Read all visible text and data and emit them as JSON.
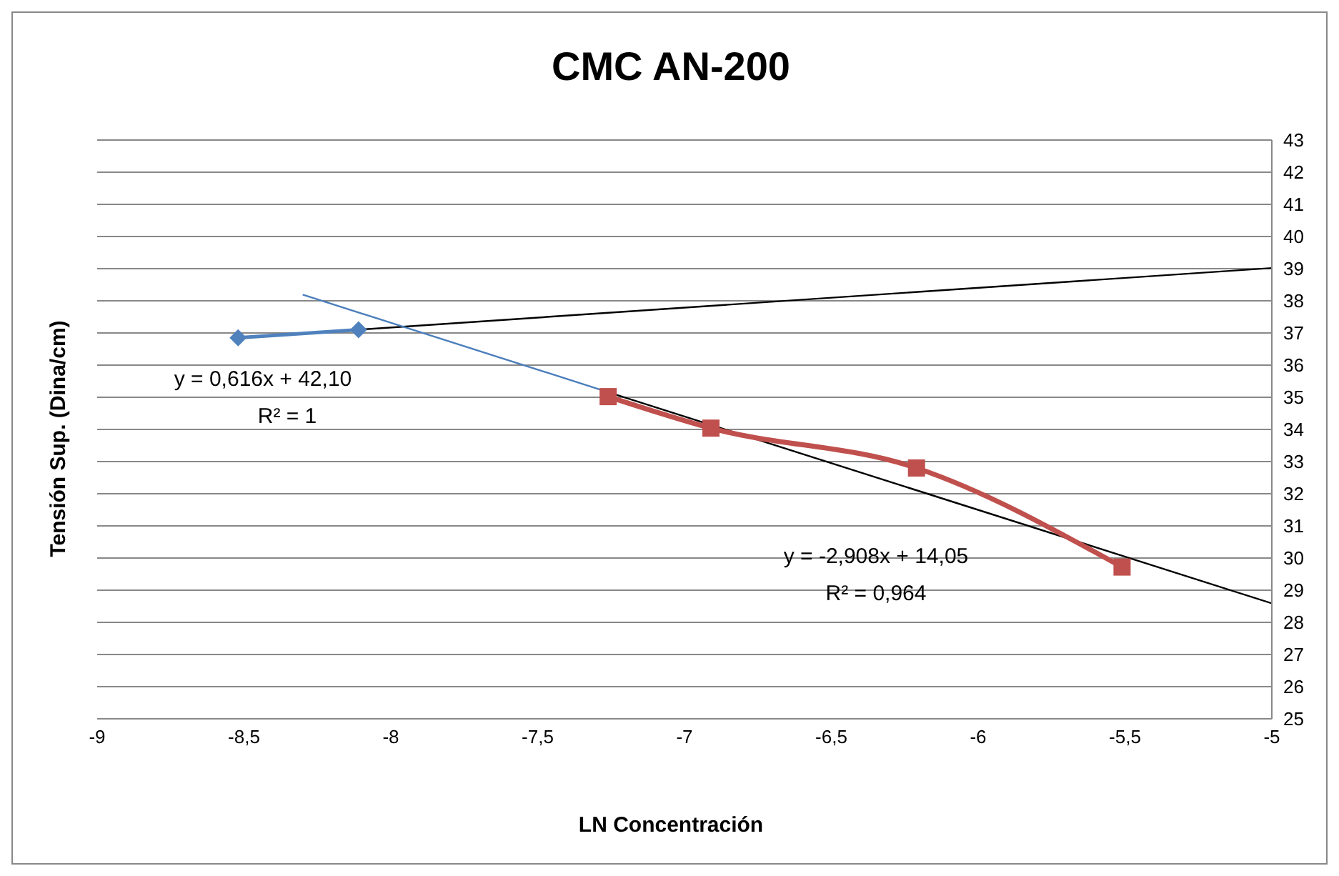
{
  "chart_data": {
    "type": "line",
    "title": "CMC AN-200",
    "xlabel": "LN Concentración",
    "ylabel": "Tensión Sup. (Dina/cm)",
    "xlim": [
      -9,
      -5
    ],
    "xticks": [
      -9,
      {
        "value": -8.5,
        "label": "-8,5"
      },
      -8,
      {
        "value": -7.5,
        "label": "-7,5"
      },
      -7,
      {
        "value": -6.5,
        "label": "-6,5"
      },
      -6,
      {
        "value": -5.5,
        "label": "-5,5"
      },
      -5
    ],
    "ylim": [
      25,
      43
    ],
    "yticks": [
      25,
      26,
      27,
      28,
      29,
      30,
      31,
      32,
      33,
      34,
      35,
      36,
      37,
      38,
      39,
      40,
      41,
      42,
      43
    ],
    "grid": "y",
    "series": [
      {
        "color": "#000000",
        "marker": "none",
        "x": [
          -8.52,
          -5
        ],
        "values": [
          36.85,
          39.02
        ]
      },
      {
        "color": "#4a7ebb",
        "marker": "none",
        "x": [
          -8.3,
          -7.26
        ],
        "values": [
          38.19,
          35.16
        ]
      },
      {
        "color": "#000000",
        "marker": "none",
        "x": [
          -7.26,
          -5
        ],
        "values": [
          35.16,
          28.59
        ]
      },
      {
        "color": "#4f81bd",
        "marker": "diamond",
        "x": [
          -8.52,
          -8.11
        ],
        "values": [
          36.85,
          37.1
        ]
      },
      {
        "color": "#c0504d",
        "marker": "square",
        "x": [
          -7.26,
          -6.91,
          -6.21,
          -5.51
        ],
        "values": [
          35.02,
          34.04,
          32.8,
          29.72
        ]
      }
    ],
    "annotations": [
      "y = 0,616x + 42,10",
      "R² = 1",
      "y = -2,908x + 14,05",
      "R² = 0,964"
    ]
  }
}
